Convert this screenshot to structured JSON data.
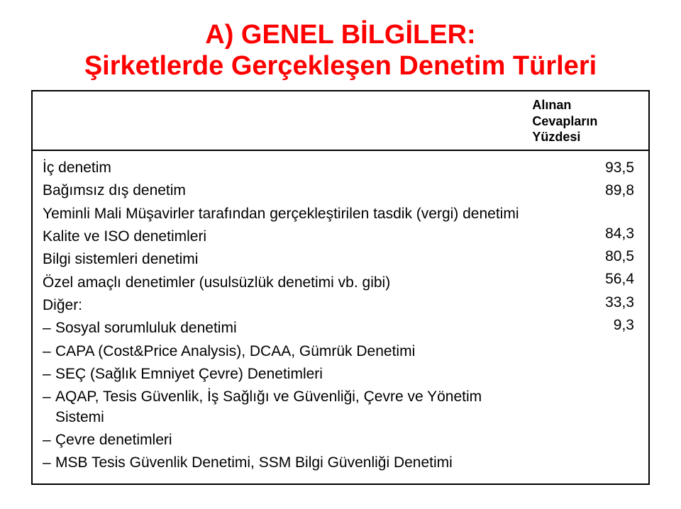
{
  "title": {
    "line1": "A) GENEL BİLGİLER:",
    "line2": "Şirketlerde Gerçekleşen Denetim Türleri",
    "color": "#ff0000",
    "fontsize": 38,
    "fontweight": 700
  },
  "table": {
    "header": {
      "line1": "Alınan",
      "line2": "Cevapların",
      "line3": "Yüzdesi",
      "fontsize": 18,
      "fontweight": 700
    },
    "rows": [
      {
        "label": "İç denetim",
        "value": "93,5"
      },
      {
        "label": "Bağımsız dış denetim",
        "value": "89,8"
      },
      {
        "label": "Yeminli Mali Müşavirler tarafından gerçekleştirilen tasdik (vergi) denetimi",
        "value": "84,3"
      },
      {
        "label": "Kalite ve ISO denetimleri",
        "value": "80,5"
      },
      {
        "label": "Bilgi sistemleri denetimi",
        "value": "56,4"
      },
      {
        "label": "Özel amaçlı denetimler (usulsüzlük denetimi vb. gibi)",
        "value": "33,3"
      },
      {
        "label": "Diğer:",
        "value": "9,3"
      }
    ],
    "sub_items": [
      "Sosyal sorumluluk denetimi",
      "CAPA (Cost&Price Analysis), DCAA, Gümrük Denetimi",
      "SEÇ (Sağlık Emniyet Çevre) Denetimleri",
      "AQAP, Tesis Güvenlik, İş Sağlığı ve Güvenliği, Çevre ve Yönetim Sistemi",
      "Çevre denetimleri",
      "MSB Tesis Güvenlik Denetimi, SSM Bilgi Güvenliği Denetimi"
    ],
    "border_color": "#000000",
    "text_color": "#000000",
    "fontsize": 21
  },
  "background_color": "#ffffff"
}
